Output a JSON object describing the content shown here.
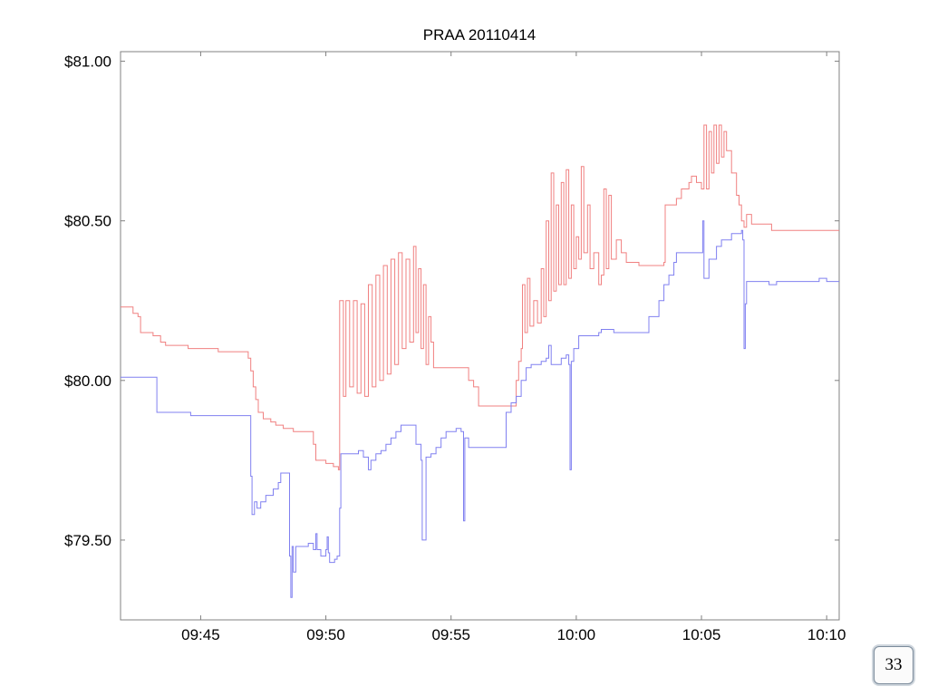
{
  "chart_data": {
    "type": "line",
    "title": "PRAA 20110414",
    "xlabel": "",
    "ylabel": "",
    "x_ticks": [
      "09:45",
      "09:50",
      "09:55",
      "10:00",
      "10:05",
      "10:10"
    ],
    "x_tick_minutes": [
      585,
      590,
      595,
      600,
      605,
      610
    ],
    "xlim_minutes": [
      581.8,
      610.5
    ],
    "y_ticks": [
      "$79.50",
      "$80.00",
      "$80.50",
      "$81.00"
    ],
    "y_tick_values": [
      79.5,
      80.0,
      80.5,
      81.0
    ],
    "ylim": [
      79.25,
      81.03
    ],
    "grid": false,
    "colors": {
      "ask": "#f08080",
      "bid": "#8080f0",
      "axis": "#808080"
    },
    "series": [
      {
        "points": [
          [
            581.8,
            80.23
          ],
          [
            582.3,
            80.23
          ],
          [
            582.3,
            80.21
          ],
          [
            582.5,
            80.2
          ],
          [
            582.6,
            80.15
          ],
          [
            583.1,
            80.14
          ],
          [
            583.4,
            80.12
          ],
          [
            583.6,
            80.11
          ],
          [
            584.2,
            80.11
          ],
          [
            584.5,
            80.1
          ],
          [
            585.3,
            80.1
          ],
          [
            585.7,
            80.09
          ],
          [
            586.2,
            80.09
          ],
          [
            586.9,
            80.07
          ],
          [
            587.0,
            80.03
          ],
          [
            587.1,
            79.98
          ],
          [
            587.2,
            79.94
          ],
          [
            587.3,
            79.9
          ],
          [
            587.5,
            79.88
          ],
          [
            587.8,
            79.87
          ],
          [
            588.0,
            79.86
          ],
          [
            588.3,
            79.85
          ],
          [
            588.7,
            79.84
          ],
          [
            589.3,
            79.84
          ],
          [
            589.5,
            79.8
          ],
          [
            589.6,
            79.75
          ],
          [
            590.0,
            79.74
          ],
          [
            590.3,
            79.73
          ],
          [
            590.5,
            79.72
          ],
          [
            590.55,
            80.25
          ],
          [
            590.7,
            79.95
          ],
          [
            590.8,
            80.25
          ],
          [
            590.95,
            79.98
          ],
          [
            591.1,
            80.25
          ],
          [
            591.25,
            79.96
          ],
          [
            591.4,
            80.24
          ],
          [
            591.55,
            79.95
          ],
          [
            591.7,
            80.3
          ],
          [
            591.85,
            79.98
          ],
          [
            592.0,
            80.33
          ],
          [
            592.15,
            80.0
          ],
          [
            592.3,
            80.36
          ],
          [
            592.45,
            80.02
          ],
          [
            592.6,
            80.38
          ],
          [
            592.75,
            80.05
          ],
          [
            592.9,
            80.4
          ],
          [
            593.05,
            80.1
          ],
          [
            593.2,
            80.38
          ],
          [
            593.35,
            80.12
          ],
          [
            593.5,
            80.42
          ],
          [
            593.6,
            80.15
          ],
          [
            593.7,
            80.35
          ],
          [
            593.8,
            80.1
          ],
          [
            593.9,
            80.3
          ],
          [
            594.0,
            80.05
          ],
          [
            594.1,
            80.2
          ],
          [
            594.2,
            80.12
          ],
          [
            594.3,
            80.04
          ],
          [
            595.5,
            80.04
          ],
          [
            595.7,
            80.0
          ],
          [
            595.9,
            79.98
          ],
          [
            596.1,
            79.92
          ],
          [
            597.4,
            79.92
          ],
          [
            597.6,
            80.0
          ],
          [
            597.7,
            80.06
          ],
          [
            597.8,
            80.1
          ],
          [
            597.85,
            80.3
          ],
          [
            597.95,
            80.15
          ],
          [
            598.05,
            80.32
          ],
          [
            598.15,
            80.17
          ],
          [
            598.3,
            80.25
          ],
          [
            598.45,
            80.18
          ],
          [
            598.6,
            80.35
          ],
          [
            598.7,
            80.2
          ],
          [
            598.8,
            80.5
          ],
          [
            598.9,
            80.25
          ],
          [
            599.0,
            80.65
          ],
          [
            599.1,
            80.28
          ],
          [
            599.2,
            80.55
          ],
          [
            599.3,
            80.3
          ],
          [
            599.4,
            80.62
          ],
          [
            599.5,
            80.3
          ],
          [
            599.6,
            80.66
          ],
          [
            599.7,
            80.32
          ],
          [
            599.8,
            80.55
          ],
          [
            599.9,
            80.35
          ],
          [
            600.0,
            80.45
          ],
          [
            600.1,
            80.38
          ],
          [
            600.2,
            80.67
          ],
          [
            600.3,
            80.4
          ],
          [
            600.45,
            80.55
          ],
          [
            600.55,
            80.35
          ],
          [
            600.7,
            80.4
          ],
          [
            600.9,
            80.3
          ],
          [
            601.0,
            80.33
          ],
          [
            601.1,
            80.6
          ],
          [
            601.2,
            80.35
          ],
          [
            601.3,
            80.58
          ],
          [
            601.4,
            80.38
          ],
          [
            601.6,
            80.44
          ],
          [
            601.8,
            80.4
          ],
          [
            602.0,
            80.37
          ],
          [
            602.5,
            80.36
          ],
          [
            603.2,
            80.36
          ],
          [
            603.5,
            80.37
          ],
          [
            603.55,
            80.55
          ],
          [
            603.8,
            80.55
          ],
          [
            604.0,
            80.57
          ],
          [
            604.2,
            80.6
          ],
          [
            604.5,
            80.62
          ],
          [
            604.6,
            80.64
          ],
          [
            604.8,
            80.62
          ],
          [
            605.0,
            80.6
          ],
          [
            605.1,
            80.8
          ],
          [
            605.2,
            80.6
          ],
          [
            605.3,
            80.78
          ],
          [
            605.4,
            80.65
          ],
          [
            605.5,
            80.8
          ],
          [
            605.6,
            80.68
          ],
          [
            605.7,
            80.8
          ],
          [
            605.8,
            80.7
          ],
          [
            605.9,
            80.78
          ],
          [
            606.0,
            80.72
          ],
          [
            606.2,
            80.65
          ],
          [
            606.4,
            80.58
          ],
          [
            606.5,
            80.55
          ],
          [
            606.6,
            80.5
          ],
          [
            606.7,
            80.48
          ],
          [
            606.8,
            80.52
          ],
          [
            607.0,
            80.49
          ],
          [
            607.5,
            80.49
          ],
          [
            607.8,
            80.47
          ],
          [
            608.0,
            80.47
          ],
          [
            610.5,
            80.47
          ]
        ]
      },
      {
        "points": [
          [
            581.8,
            80.01
          ],
          [
            583.2,
            80.01
          ],
          [
            583.25,
            79.9
          ],
          [
            584.0,
            79.9
          ],
          [
            584.5,
            79.9
          ],
          [
            584.6,
            79.89
          ],
          [
            586.9,
            79.89
          ],
          [
            587.0,
            79.7
          ],
          [
            587.05,
            79.58
          ],
          [
            587.15,
            79.62
          ],
          [
            587.25,
            79.6
          ],
          [
            587.4,
            79.62
          ],
          [
            587.6,
            79.64
          ],
          [
            587.9,
            79.66
          ],
          [
            588.1,
            79.68
          ],
          [
            588.2,
            79.71
          ],
          [
            588.5,
            79.71
          ],
          [
            588.55,
            79.45
          ],
          [
            588.6,
            79.32
          ],
          [
            588.65,
            79.48
          ],
          [
            588.7,
            79.4
          ],
          [
            588.8,
            79.48
          ],
          [
            589.0,
            79.48
          ],
          [
            589.3,
            79.49
          ],
          [
            589.5,
            79.47
          ],
          [
            589.6,
            79.52
          ],
          [
            589.65,
            79.47
          ],
          [
            589.8,
            79.45
          ],
          [
            590.0,
            79.47
          ],
          [
            590.05,
            79.51
          ],
          [
            590.1,
            79.46
          ],
          [
            590.15,
            79.43
          ],
          [
            590.3,
            79.43
          ],
          [
            590.35,
            79.44
          ],
          [
            590.45,
            79.45
          ],
          [
            590.55,
            79.6
          ],
          [
            590.6,
            79.77
          ],
          [
            591.0,
            79.77
          ],
          [
            591.3,
            79.78
          ],
          [
            591.5,
            79.76
          ],
          [
            591.7,
            79.72
          ],
          [
            591.8,
            79.75
          ],
          [
            592.0,
            79.77
          ],
          [
            592.2,
            79.78
          ],
          [
            592.4,
            79.8
          ],
          [
            592.6,
            79.82
          ],
          [
            592.8,
            79.84
          ],
          [
            593.0,
            79.86
          ],
          [
            593.5,
            79.86
          ],
          [
            593.6,
            79.8
          ],
          [
            593.8,
            79.75
          ],
          [
            593.85,
            79.5
          ],
          [
            594.0,
            79.76
          ],
          [
            594.2,
            79.77
          ],
          [
            594.4,
            79.79
          ],
          [
            594.6,
            79.82
          ],
          [
            594.8,
            79.84
          ],
          [
            595.0,
            79.84
          ],
          [
            595.2,
            79.85
          ],
          [
            595.4,
            79.84
          ],
          [
            595.5,
            79.56
          ],
          [
            595.55,
            79.82
          ],
          [
            595.7,
            79.79
          ],
          [
            597.1,
            79.79
          ],
          [
            597.2,
            79.9
          ],
          [
            597.4,
            79.93
          ],
          [
            597.6,
            79.95
          ],
          [
            597.8,
            80.0
          ],
          [
            598.0,
            80.04
          ],
          [
            598.2,
            80.05
          ],
          [
            598.6,
            80.06
          ],
          [
            598.8,
            80.07
          ],
          [
            598.9,
            80.11
          ],
          [
            599.0,
            80.05
          ],
          [
            599.2,
            80.05
          ],
          [
            599.4,
            80.07
          ],
          [
            599.6,
            80.08
          ],
          [
            599.7,
            80.05
          ],
          [
            599.75,
            79.72
          ],
          [
            599.8,
            80.06
          ],
          [
            599.9,
            80.1
          ],
          [
            600.1,
            80.14
          ],
          [
            600.6,
            80.14
          ],
          [
            600.9,
            80.15
          ],
          [
            601.0,
            80.16
          ],
          [
            601.3,
            80.16
          ],
          [
            601.5,
            80.15
          ],
          [
            602.0,
            80.15
          ],
          [
            602.2,
            80.15
          ],
          [
            602.8,
            80.15
          ],
          [
            602.9,
            80.2
          ],
          [
            603.1,
            80.2
          ],
          [
            603.2,
            80.2
          ],
          [
            603.3,
            80.25
          ],
          [
            603.5,
            80.3
          ],
          [
            603.7,
            80.33
          ],
          [
            603.9,
            80.37
          ],
          [
            604.0,
            80.4
          ],
          [
            604.3,
            80.4
          ],
          [
            604.5,
            80.4
          ],
          [
            605.0,
            80.4
          ],
          [
            605.05,
            80.5
          ],
          [
            605.1,
            80.32
          ],
          [
            605.3,
            80.38
          ],
          [
            605.6,
            80.42
          ],
          [
            605.8,
            80.44
          ],
          [
            606.2,
            80.46
          ],
          [
            606.5,
            80.46
          ],
          [
            606.6,
            80.47
          ],
          [
            606.65,
            80.44
          ],
          [
            606.7,
            80.1
          ],
          [
            606.75,
            80.24
          ],
          [
            606.8,
            80.31
          ],
          [
            607.5,
            80.31
          ],
          [
            607.7,
            80.3
          ],
          [
            608.0,
            80.31
          ],
          [
            609.5,
            80.31
          ],
          [
            609.7,
            80.32
          ],
          [
            610.0,
            80.31
          ],
          [
            610.5,
            80.31
          ]
        ]
      }
    ]
  },
  "page_number": "33"
}
